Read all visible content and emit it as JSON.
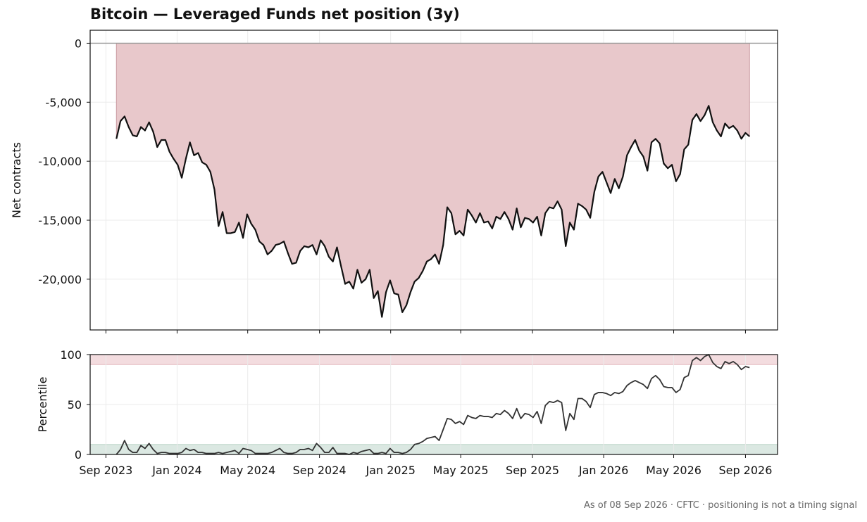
{
  "chart_title": "Bitcoin — Leveraged Funds net position (3y)",
  "footnote": "As of 08 Sep 2026 · CFTC · positioning is not a timing signal",
  "chart_data": [
    {
      "type": "area",
      "ylabel": "Net contracts",
      "ylim": [
        -24300,
        1100
      ],
      "yticks": [
        0,
        -5000,
        -10000,
        -15000,
        -20000
      ],
      "ytick_labels": [
        "0",
        "-5,000",
        "-10,000",
        "-15,000",
        "-20,000"
      ],
      "grid": true,
      "fill_color": "#e8c8cb",
      "fill_edge_color": "#c99aa0",
      "line_color": "#111111",
      "zero_line_color": "#999999",
      "x_start": "2023-09-19",
      "x_step_days": 7,
      "values": [
        -8100,
        -6600,
        -6200,
        -7100,
        -7800,
        -7900,
        -7100,
        -7400,
        -6700,
        -7500,
        -8800,
        -8200,
        -8200,
        -9200,
        -9800,
        -10300,
        -11400,
        -9800,
        -8400,
        -9500,
        -9300,
        -10100,
        -10300,
        -10900,
        -12400,
        -15500,
        -14300,
        -16100,
        -16100,
        -16000,
        -15200,
        -16500,
        -14500,
        -15300,
        -15800,
        -16800,
        -17100,
        -17900,
        -17600,
        -17100,
        -17000,
        -16800,
        -17800,
        -18700,
        -18600,
        -17600,
        -17200,
        -17300,
        -17100,
        -17900,
        -16700,
        -17200,
        -18100,
        -18500,
        -17300,
        -18900,
        -20400,
        -20200,
        -20800,
        -19200,
        -20300,
        -20000,
        -19200,
        -21600,
        -21000,
        -23200,
        -21100,
        -20100,
        -21200,
        -21300,
        -22800,
        -22200,
        -21100,
        -20200,
        -19900,
        -19300,
        -18500,
        -18300,
        -17900,
        -18700,
        -17100,
        -13900,
        -14400,
        -16200,
        -15900,
        -16300,
        -14100,
        -14600,
        -15200,
        -14400,
        -15200,
        -15100,
        -15700,
        -14700,
        -14900,
        -14300,
        -14900,
        -15800,
        -14000,
        -15600,
        -14800,
        -14900,
        -15200,
        -14700,
        -16300,
        -14400,
        -13900,
        -14000,
        -13400,
        -14100,
        -17200,
        -15200,
        -15800,
        -13600,
        -13800,
        -14100,
        -14800,
        -12600,
        -11300,
        -10900,
        -11800,
        -12700,
        -11500,
        -12300,
        -11300,
        -9500,
        -8800,
        -8200,
        -9100,
        -9600,
        -10800,
        -8400,
        -8100,
        -8500,
        -10200,
        -10600,
        -10300,
        -11700,
        -11100,
        -9000,
        -8600,
        -6500,
        -6000,
        -6600,
        -6100,
        -5300,
        -6700,
        -7400,
        -7900,
        -6800,
        -7200,
        -7000,
        -7400,
        -8100,
        -7600,
        -7900
      ]
    },
    {
      "type": "line",
      "ylabel": "Percentile",
      "ylim": [
        0,
        100
      ],
      "yticks": [
        0,
        50,
        100
      ],
      "ytick_labels": [
        "0",
        "50",
        "100"
      ],
      "grid": true,
      "line_color": "#333333",
      "upper_band": [
        90,
        100
      ],
      "upper_band_color": "#f3dcdf",
      "lower_band": [
        0,
        10
      ],
      "lower_band_color": "#dbe8e2",
      "x_start": "2023-09-19",
      "x_step_days": 7,
      "xticks": [
        "2023-09-01",
        "2024-01-01",
        "2024-05-01",
        "2024-09-01",
        "2025-01-01",
        "2025-05-01",
        "2025-09-01",
        "2026-01-01",
        "2026-05-01",
        "2026-09-01"
      ],
      "xtick_labels": [
        "Sep 2023",
        "Jan 2024",
        "May 2024",
        "Sep 2024",
        "Jan 2025",
        "May 2025",
        "Sep 2025",
        "Jan 2026",
        "May 2026",
        "Sep 2026"
      ],
      "values": [
        0,
        5,
        14,
        5,
        2,
        2,
        9,
        6,
        11,
        5,
        1,
        2,
        2,
        1,
        1,
        1,
        2,
        6,
        4,
        5,
        2,
        2,
        1,
        1,
        1,
        2,
        1,
        2,
        3,
        4,
        1,
        6,
        5,
        4,
        1,
        1,
        1,
        1,
        2,
        4,
        6,
        2,
        1,
        1,
        2,
        5,
        5,
        6,
        4,
        11,
        7,
        2,
        2,
        7,
        1,
        1,
        1,
        0,
        2,
        1,
        3,
        4,
        5,
        1,
        1,
        2,
        1,
        6,
        2,
        2,
        1,
        2,
        5,
        10,
        11,
        13,
        16,
        17,
        18,
        14,
        25,
        36,
        35,
        31,
        33,
        30,
        39,
        37,
        36,
        39,
        38,
        38,
        37,
        41,
        40,
        44,
        41,
        36,
        46,
        36,
        41,
        40,
        37,
        43,
        31,
        49,
        53,
        52,
        54,
        52,
        24,
        41,
        35,
        56,
        56,
        53,
        47,
        60,
        62,
        62,
        61,
        59,
        62,
        61,
        63,
        69,
        72,
        74,
        72,
        70,
        66,
        76,
        79,
        75,
        68,
        67,
        67,
        62,
        65,
        77,
        79,
        94,
        97,
        94,
        98,
        100,
        92,
        88,
        86,
        93,
        91,
        93,
        90,
        85,
        88,
        87
      ]
    }
  ]
}
